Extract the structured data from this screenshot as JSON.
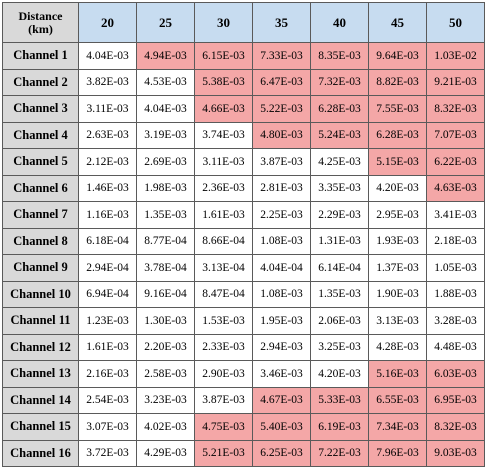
{
  "table": {
    "corner_label_line1": "Distance",
    "corner_label_line2": "(km)",
    "columns": [
      "20",
      "25",
      "30",
      "35",
      "40",
      "45",
      "50"
    ],
    "highlight_color": "#f4a7a7",
    "rows": [
      {
        "label": "Channel 1",
        "values": [
          "4.04E-03",
          "4.94E-03",
          "6.15E-03",
          "7.33E-03",
          "8.35E-03",
          "9.64E-03",
          "1.03E-02"
        ],
        "highlight": [
          false,
          true,
          true,
          true,
          true,
          true,
          true
        ]
      },
      {
        "label": "Channel 2",
        "values": [
          "3.82E-03",
          "4.53E-03",
          "5.38E-03",
          "6.47E-03",
          "7.32E-03",
          "8.82E-03",
          "9.21E-03"
        ],
        "highlight": [
          false,
          false,
          true,
          true,
          true,
          true,
          true
        ]
      },
      {
        "label": "Channel 3",
        "values": [
          "3.11E-03",
          "4.04E-03",
          "4.66E-03",
          "5.22E-03",
          "6.28E-03",
          "7.55E-03",
          "8.32E-03"
        ],
        "highlight": [
          false,
          false,
          true,
          true,
          true,
          true,
          true
        ]
      },
      {
        "label": "Channel 4",
        "values": [
          "2.63E-03",
          "3.19E-03",
          "3.74E-03",
          "4.80E-03",
          "5.24E-03",
          "6.28E-03",
          "7.07E-03"
        ],
        "highlight": [
          false,
          false,
          false,
          true,
          true,
          true,
          true
        ]
      },
      {
        "label": "Channel 5",
        "values": [
          "2.12E-03",
          "2.69E-03",
          "3.11E-03",
          "3.87E-03",
          "4.25E-03",
          "5.15E-03",
          "6.22E-03"
        ],
        "highlight": [
          false,
          false,
          false,
          false,
          false,
          true,
          true
        ]
      },
      {
        "label": "Channel 6",
        "values": [
          "1.46E-03",
          "1.98E-03",
          "2.36E-03",
          "2.81E-03",
          "3.35E-03",
          "4.20E-03",
          "4.63E-03"
        ],
        "highlight": [
          false,
          false,
          false,
          false,
          false,
          false,
          true
        ]
      },
      {
        "label": "Channel 7",
        "values": [
          "1.16E-03",
          "1.35E-03",
          "1.61E-03",
          "2.25E-03",
          "2.29E-03",
          "2.95E-03",
          "3.41E-03"
        ],
        "highlight": [
          false,
          false,
          false,
          false,
          false,
          false,
          false
        ]
      },
      {
        "label": "Channel 8",
        "values": [
          "6.18E-04",
          "8.77E-04",
          "8.66E-04",
          "1.08E-03",
          "1.31E-03",
          "1.93E-03",
          "2.18E-03"
        ],
        "highlight": [
          false,
          false,
          false,
          false,
          false,
          false,
          false
        ]
      },
      {
        "label": "Channel 9",
        "values": [
          "2.94E-04",
          "3.78E-04",
          "3.13E-04",
          "4.04E-04",
          "6.14E-04",
          "1.37E-03",
          "1.05E-03"
        ],
        "highlight": [
          false,
          false,
          false,
          false,
          false,
          false,
          false
        ]
      },
      {
        "label": "Channel 10",
        "values": [
          "6.94E-04",
          "9.16E-04",
          "8.47E-04",
          "1.08E-03",
          "1.35E-03",
          "1.90E-03",
          "1.88E-03"
        ],
        "highlight": [
          false,
          false,
          false,
          false,
          false,
          false,
          false
        ]
      },
      {
        "label": "Channel 11",
        "values": [
          "1.23E-03",
          "1.30E-03",
          "1.53E-03",
          "1.95E-03",
          "2.06E-03",
          "3.13E-03",
          "3.28E-03"
        ],
        "highlight": [
          false,
          false,
          false,
          false,
          false,
          false,
          false
        ]
      },
      {
        "label": "Channel 12",
        "values": [
          "1.61E-03",
          "2.20E-03",
          "2.33E-03",
          "2.94E-03",
          "3.25E-03",
          "4.28E-03",
          "4.48E-03"
        ],
        "highlight": [
          false,
          false,
          false,
          false,
          false,
          false,
          false
        ]
      },
      {
        "label": "Channel 13",
        "values": [
          "2.16E-03",
          "2.58E-03",
          "2.90E-03",
          "3.46E-03",
          "4.20E-03",
          "5.16E-03",
          "6.03E-03"
        ],
        "highlight": [
          false,
          false,
          false,
          false,
          false,
          true,
          true
        ]
      },
      {
        "label": "Channel 14",
        "values": [
          "2.54E-03",
          "3.23E-03",
          "3.87E-03",
          "4.67E-03",
          "5.33E-03",
          "6.55E-03",
          "6.95E-03"
        ],
        "highlight": [
          false,
          false,
          false,
          true,
          true,
          true,
          true
        ]
      },
      {
        "label": "Channel 15",
        "values": [
          "3.07E-03",
          "4.02E-03",
          "4.75E-03",
          "5.40E-03",
          "6.19E-03",
          "7.34E-03",
          "8.32E-03"
        ],
        "highlight": [
          false,
          false,
          true,
          true,
          true,
          true,
          true
        ]
      },
      {
        "label": "Channel 16",
        "values": [
          "3.72E-03",
          "4.29E-03",
          "5.21E-03",
          "6.25E-03",
          "7.22E-03",
          "7.96E-03",
          "9.03E-03"
        ],
        "highlight": [
          false,
          false,
          true,
          true,
          true,
          true,
          true
        ]
      }
    ]
  }
}
